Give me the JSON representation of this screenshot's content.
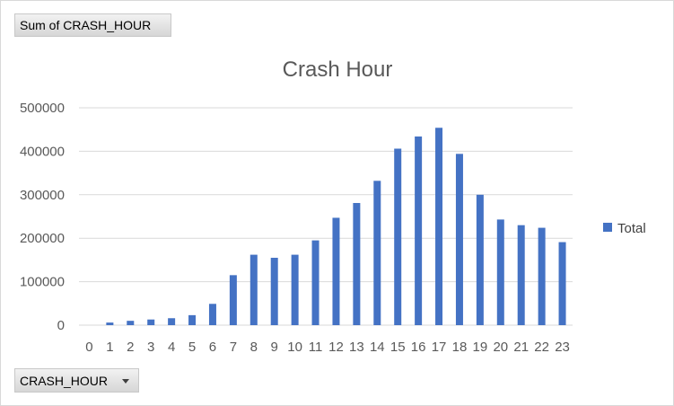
{
  "pivot": {
    "value_field_label": "Sum of CRASH_HOUR",
    "axis_field_label": "CRASH_HOUR",
    "axis_field_icon": "dropdown-arrow-icon"
  },
  "chart_data": {
    "type": "bar",
    "title": "Crash Hour",
    "xlabel": "",
    "ylabel": "",
    "categories": [
      "0",
      "1",
      "2",
      "3",
      "4",
      "5",
      "6",
      "7",
      "8",
      "9",
      "10",
      "11",
      "12",
      "13",
      "14",
      "15",
      "16",
      "17",
      "18",
      "19",
      "20",
      "21",
      "22",
      "23"
    ],
    "series": [
      {
        "name": "Total",
        "color": "#4472c4",
        "values": [
          0,
          6000,
          10000,
          13000,
          16000,
          23000,
          49000,
          115000,
          162000,
          155000,
          162000,
          195000,
          247000,
          281000,
          332000,
          406000,
          434000,
          454000,
          394000,
          300000,
          243000,
          230000,
          224000,
          191000
        ]
      }
    ],
    "ylim": [
      0,
      500000
    ],
    "yticks": [
      "0",
      "100000",
      "200000",
      "300000",
      "400000",
      "500000"
    ],
    "grid": true,
    "legend": "right"
  }
}
